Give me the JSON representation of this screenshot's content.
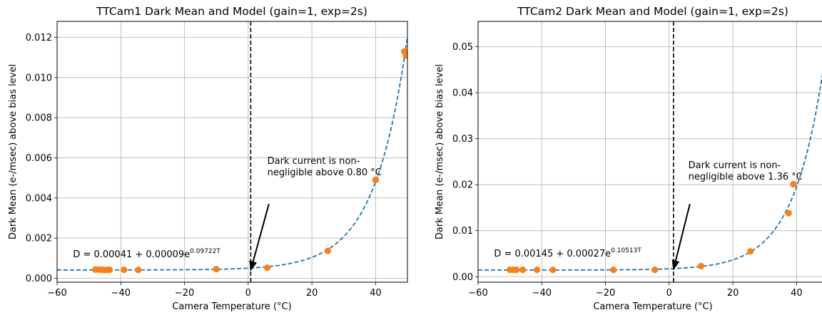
{
  "chart_data": [
    {
      "type": "scatter",
      "title": "TTCam1 Dark Mean and Model (gain=1, exp=2s)",
      "xlabel": "Camera Temperature (°C)",
      "ylabel": "Dark Mean (e-/msec) above bias level",
      "xlim": [
        -60,
        50
      ],
      "ylim": [
        -0.0002,
        0.0128
      ],
      "xticks": [
        -60,
        -40,
        -20,
        0,
        20,
        40
      ],
      "xtick_labels": [
        "−60",
        "−40",
        "−20",
        "0",
        "20",
        "40"
      ],
      "yticks": [
        0,
        0.002,
        0.004,
        0.006,
        0.008,
        0.01,
        0.012
      ],
      "ytick_labels": [
        "0.000",
        "0.002",
        "0.004",
        "0.006",
        "0.008",
        "0.010",
        "0.012"
      ],
      "grid": true,
      "series": [
        {
          "kind": "points",
          "color": "#ff7f0e",
          "x": [
            -48,
            -47,
            -46,
            -45.5,
            -45,
            -44,
            -43.5,
            -39,
            -34.5,
            -10,
            6,
            25,
            40,
            49,
            49.5
          ],
          "y": [
            0.00043,
            0.00043,
            0.00042,
            0.00042,
            0.00041,
            0.00042,
            0.00042,
            0.00042,
            0.00041,
            0.00045,
            0.00052,
            0.00136,
            0.0049,
            0.0113,
            0.0111
          ]
        },
        {
          "kind": "model",
          "color": "#1f77b4",
          "linestyle": "dashed",
          "a": 0.00041,
          "b": 9e-05,
          "k": 0.09722
        }
      ],
      "vline": {
        "x": 0.8,
        "color": "#000000",
        "linestyle": "dashed"
      },
      "annotation": {
        "line1": "Dark current is non-",
        "line2": "negligible above 0.80 °C",
        "text_x": 6,
        "text_y": 0.0057,
        "arrow_tail": [
          6.5,
          0.0037
        ],
        "arrow_head": [
          0.8,
          0.0004
        ]
      },
      "equation": {
        "text": "D = 0.00041 + 0.00009e",
        "exponent": "0.09722T",
        "x": -55,
        "y": 0.00105
      }
    },
    {
      "type": "scatter",
      "title": "TTCam2 Dark Mean and Model (gain=1, exp=2s)",
      "xlabel": "Camera Temperature (°C)",
      "ylabel": "Dark Mean (e-/msec) above bias level",
      "xlim": [
        -60,
        50
      ],
      "ylim": [
        -0.0012,
        0.0555
      ],
      "xticks": [
        -60,
        -40,
        -20,
        0,
        20,
        40
      ],
      "xtick_labels": [
        "−60",
        "−40",
        "−20",
        "0",
        "20",
        "40"
      ],
      "yticks": [
        0,
        0.01,
        0.02,
        0.03,
        0.04,
        0.05
      ],
      "ytick_labels": [
        "0.00",
        "0.01",
        "0.02",
        "0.03",
        "0.04",
        "0.05"
      ],
      "grid": true,
      "series": [
        {
          "kind": "points",
          "color": "#ff7f0e",
          "x": [
            -50,
            -49,
            -48,
            -46,
            -41.5,
            -36.5,
            -17.5,
            -4.5,
            10,
            25.5,
            37.5,
            39
          ],
          "y": [
            0.0015,
            0.0015,
            0.0015,
            0.0015,
            0.0015,
            0.0015,
            0.0015,
            0.0015,
            0.0023,
            0.0055,
            0.0138,
            0.0201
          ]
        },
        {
          "kind": "model",
          "color": "#1f77b4",
          "linestyle": "dashed",
          "a": 0.00145,
          "b": 0.00027,
          "k": 0.10513
        }
      ],
      "vline": {
        "x": 1.36,
        "color": "#000000",
        "linestyle": "dashed"
      },
      "annotation": {
        "line1": "Dark current is non-",
        "line2": "negligible above 1.36 °C",
        "text_x": 6,
        "text_y": 0.0236,
        "arrow_tail": [
          6.5,
          0.0158
        ],
        "arrow_head": [
          1.36,
          0.0016
        ]
      },
      "equation": {
        "text": "D = 0.00145 + 0.00027e",
        "exponent": "0.10513T",
        "x": -55,
        "y": 0.0044
      }
    }
  ]
}
